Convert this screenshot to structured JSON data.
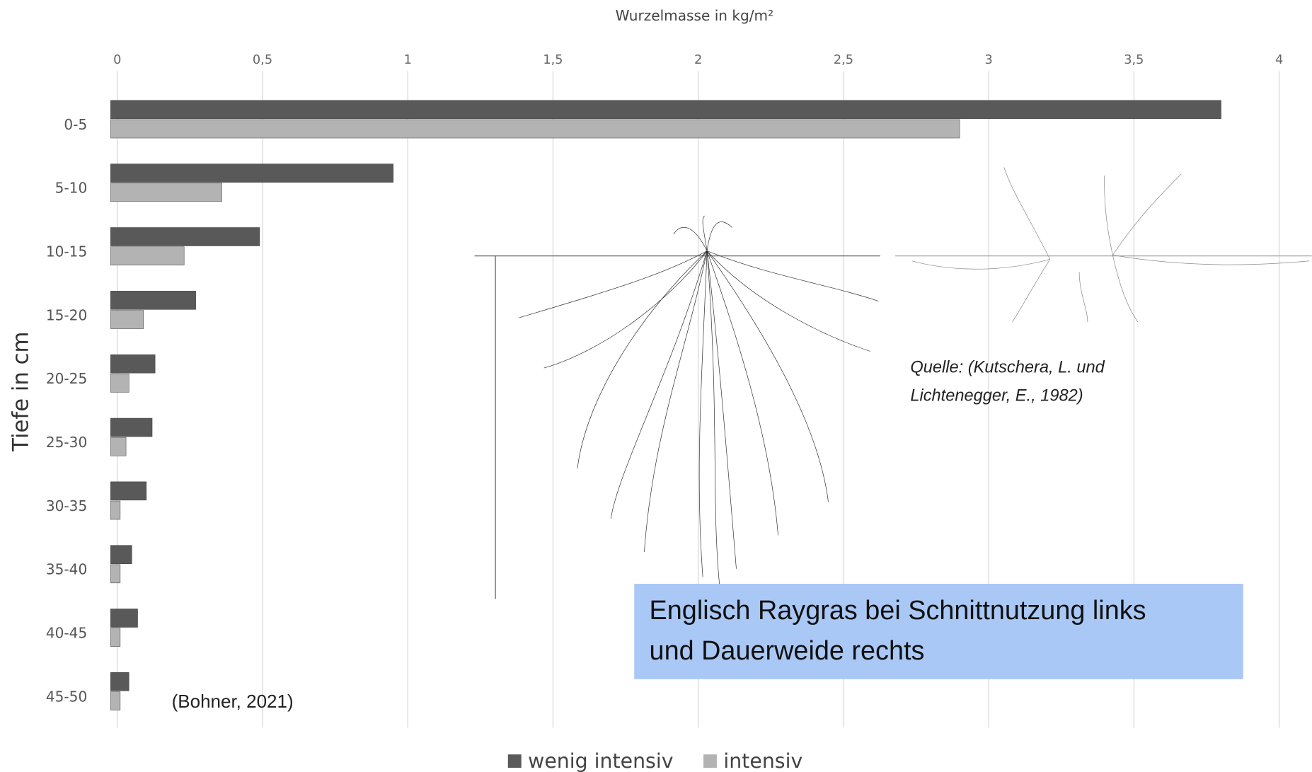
{
  "chart_data": {
    "type": "hbar",
    "title": "Wurzelmasse in kg/m²",
    "y_label": "Tiefe in cm",
    "categories": [
      "0-5",
      "5-10",
      "10-15",
      "15-20",
      "20-25",
      "25-30",
      "30-35",
      "35-40",
      "40-45",
      "45-50"
    ],
    "series": [
      {
        "name": "wenig intensiv",
        "color": "#595959",
        "values": [
          3.8,
          0.95,
          0.49,
          0.27,
          0.13,
          0.12,
          0.1,
          0.05,
          0.07,
          0.04
        ]
      },
      {
        "name": "intensiv",
        "color": "#b3b3b3",
        "values": [
          2.9,
          0.36,
          0.23,
          0.09,
          0.04,
          0.03,
          0.01,
          0.01,
          0.01,
          0.01
        ]
      }
    ],
    "xlim": [
      0,
      4
    ],
    "xticks": [
      0,
      {
        "value": 0.5,
        "label": "0,5"
      },
      1,
      {
        "value": 1.5,
        "label": "1,5"
      },
      2,
      {
        "value": 2.5,
        "label": "2,5"
      },
      3,
      {
        "value": 3.5,
        "label": "3,5"
      },
      4
    ],
    "grid": true,
    "legend": "bottom",
    "annotations": {
      "source_chart": "(Bohner, 2021)",
      "source_images": [
        "Quelle: (Kutschera, L. und",
        "Lichtenegger, E., 1982)"
      ],
      "caption": [
        "Englisch Raygras bei Schnittnutzung links",
        "und Dauerweide rechts"
      ]
    }
  }
}
